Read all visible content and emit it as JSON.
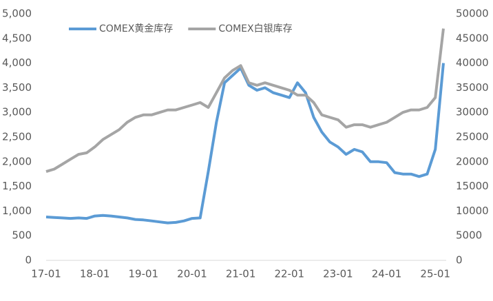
{
  "chart_data": {
    "type": "line",
    "categories": [
      "17-01",
      null,
      null,
      null,
      null,
      null,
      "18-01",
      null,
      null,
      null,
      null,
      null,
      "19-01",
      null,
      null,
      null,
      null,
      null,
      "20-01",
      null,
      null,
      null,
      null,
      null,
      "21-01",
      null,
      null,
      null,
      null,
      null,
      "22-01",
      null,
      null,
      null,
      null,
      null,
      "23-01",
      null,
      null,
      null,
      null,
      null,
      "24-01",
      null,
      null,
      null,
      null,
      null,
      "25-01",
      null
    ],
    "series": [
      {
        "name": "COMEX黄金库存",
        "color": "#5b9bd5",
        "axis": "y",
        "values": [
          880,
          870,
          860,
          850,
          860,
          850,
          900,
          910,
          900,
          880,
          860,
          830,
          820,
          800,
          780,
          760,
          770,
          800,
          850,
          860,
          1800,
          2800,
          3600,
          3750,
          3900,
          3550,
          3450,
          3500,
          3400,
          3350,
          3300,
          3600,
          3400,
          2900,
          2600,
          2400,
          2300,
          2150,
          2250,
          2200,
          2000,
          2000,
          1980,
          1780,
          1750,
          1750,
          1700,
          1750,
          2250,
          4000
        ]
      },
      {
        "name": "COMEX白银库存",
        "color": "#a5a5a5",
        "axis": "y2",
        "values": [
          18000,
          18500,
          19500,
          20500,
          21500,
          21800,
          23000,
          24500,
          25500,
          26500,
          28000,
          29000,
          29500,
          29500,
          30000,
          30500,
          30500,
          31000,
          31500,
          32000,
          31000,
          34000,
          37000,
          38500,
          39500,
          36000,
          35500,
          36000,
          35500,
          35000,
          34500,
          33500,
          33500,
          32000,
          29500,
          29000,
          28500,
          27000,
          27500,
          27500,
          27000,
          27500,
          28000,
          29000,
          30000,
          30500,
          30500,
          31000,
          33000,
          47000
        ]
      }
    ],
    "ylim": [
      0,
      5000
    ],
    "yticks": [
      0,
      500,
      {
        "value": 1000,
        "label": "1,000"
      },
      {
        "value": 1500,
        "label": "1,500"
      },
      {
        "value": 2000,
        "label": "2,000"
      },
      {
        "value": 2500,
        "label": "2,500"
      },
      {
        "value": 3000,
        "label": "3,000"
      },
      {
        "value": 3500,
        "label": "3,500"
      },
      {
        "value": 4000,
        "label": "4,000"
      },
      {
        "value": 4500,
        "label": "4,500"
      },
      {
        "value": 5000,
        "label": "5,000"
      }
    ],
    "y2lim": [
      0,
      50000
    ],
    "y2ticks": [
      0,
      5000,
      10000,
      15000,
      20000,
      25000,
      30000,
      35000,
      40000,
      45000,
      50000
    ],
    "legend": "top-left"
  }
}
